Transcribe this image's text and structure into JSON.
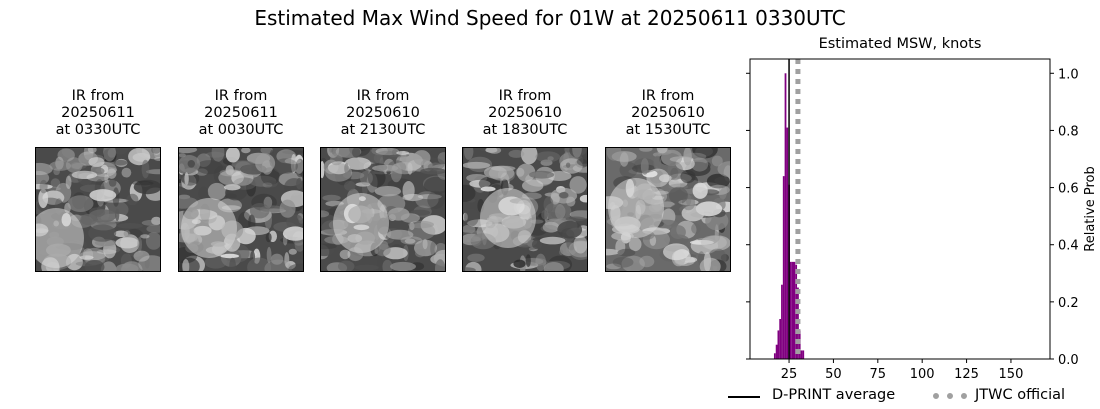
{
  "suptitle": "Estimated Max Wind Speed for 01W at 20250611 0330UTC",
  "ir_panels": [
    {
      "caption": "IR from\n20250611\nat 0330UTC"
    },
    {
      "caption": "IR from\n20250611\nat 0030UTC"
    },
    {
      "caption": "IR from\n20250610\nat 2130UTC"
    },
    {
      "caption": "IR from\n20250610\nat 1830UTC"
    },
    {
      "caption": "IR from\n20250610\nat 1530UTC"
    }
  ],
  "chart_data": {
    "type": "bar",
    "title": "Estimated MSW, knots",
    "xlabel": "",
    "ylabel": "Relative Prob",
    "xlim": [
      3,
      172
    ],
    "ylim": [
      0,
      1.05
    ],
    "xticks": [
      25,
      50,
      75,
      100,
      125,
      150
    ],
    "yticks": [
      0.0,
      0.2,
      0.4,
      0.6,
      0.8,
      1.0
    ],
    "y_axis_side": "right",
    "bar_color": "#800080",
    "bars": [
      {
        "x": 17,
        "y": 0.02
      },
      {
        "x": 18,
        "y": 0.05
      },
      {
        "x": 19,
        "y": 0.1
      },
      {
        "x": 20,
        "y": 0.14
      },
      {
        "x": 21,
        "y": 0.26
      },
      {
        "x": 22,
        "y": 0.64
      },
      {
        "x": 23,
        "y": 1.0
      },
      {
        "x": 24,
        "y": 0.81
      },
      {
        "x": 25,
        "y": 0.61
      },
      {
        "x": 26,
        "y": 0.34
      },
      {
        "x": 27,
        "y": 0.34
      },
      {
        "x": 28,
        "y": 0.34
      },
      {
        "x": 29,
        "y": 0.33
      },
      {
        "x": 30,
        "y": 0.25
      },
      {
        "x": 31,
        "y": 0.1
      },
      {
        "x": 32,
        "y": 0.03
      },
      {
        "x": 33,
        "y": 0.03
      }
    ],
    "dprint_average": 25,
    "jtwc_official": 30,
    "legend": [
      {
        "label": "D-PRINT average",
        "style": "solid",
        "color": "#000000"
      },
      {
        "label": "JTWC official",
        "style": "dotted",
        "color": "#a0a0a0"
      }
    ]
  }
}
